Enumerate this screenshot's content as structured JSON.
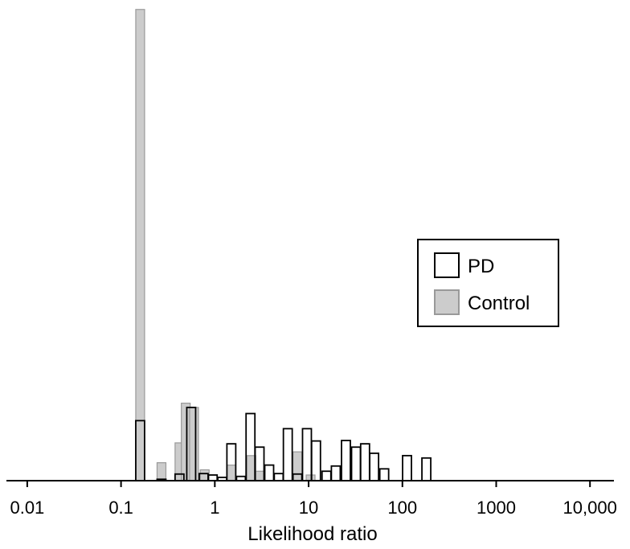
{
  "chart_data": {
    "type": "bar",
    "title": "",
    "xlabel": "Likelihood ratio",
    "ylabel": "",
    "x_scale": "log",
    "xlim": [
      0.006,
      18000
    ],
    "ylim": [
      0,
      1.0
    ],
    "grid": false,
    "legend_position": "right",
    "x_ticks": [
      {
        "value": 0.01,
        "label": "0.01"
      },
      {
        "value": 0.1,
        "label": "0.1"
      },
      {
        "value": 1,
        "label": "1"
      },
      {
        "value": 10,
        "label": "10"
      },
      {
        "value": 100,
        "label": "100"
      },
      {
        "value": 1000,
        "label": "1000"
      },
      {
        "value": 10000,
        "label": "10,000"
      }
    ],
    "series": [
      {
        "name": "PD",
        "fill": "#ffffff",
        "stroke": "#000000",
        "points": [
          {
            "x": 0.16,
            "y": 0.127
          },
          {
            "x": 0.27,
            "y": 0.003
          },
          {
            "x": 0.42,
            "y": 0.014
          },
          {
            "x": 0.56,
            "y": 0.155
          },
          {
            "x": 0.76,
            "y": 0.015
          },
          {
            "x": 0.95,
            "y": 0.012
          },
          {
            "x": 1.2,
            "y": 0.007
          },
          {
            "x": 1.5,
            "y": 0.078
          },
          {
            "x": 1.9,
            "y": 0.009
          },
          {
            "x": 2.4,
            "y": 0.142
          },
          {
            "x": 3.0,
            "y": 0.071
          },
          {
            "x": 3.8,
            "y": 0.033
          },
          {
            "x": 4.8,
            "y": 0.015
          },
          {
            "x": 6.0,
            "y": 0.11
          },
          {
            "x": 7.6,
            "y": 0.014
          },
          {
            "x": 9.6,
            "y": 0.11
          },
          {
            "x": 12,
            "y": 0.084
          },
          {
            "x": 15.5,
            "y": 0.02
          },
          {
            "x": 19.5,
            "y": 0.031
          },
          {
            "x": 25,
            "y": 0.085
          },
          {
            "x": 32,
            "y": 0.071
          },
          {
            "x": 40,
            "y": 0.078
          },
          {
            "x": 50,
            "y": 0.058
          },
          {
            "x": 64,
            "y": 0.025
          },
          {
            "x": 112,
            "y": 0.053
          },
          {
            "x": 180,
            "y": 0.048
          }
        ]
      },
      {
        "name": "Control",
        "fill": "#cccccc",
        "stroke": "#999999",
        "points": [
          {
            "x": 0.16,
            "y": 0.997
          },
          {
            "x": 0.27,
            "y": 0.038
          },
          {
            "x": 0.42,
            "y": 0.08
          },
          {
            "x": 0.49,
            "y": 0.164
          },
          {
            "x": 0.6,
            "y": 0.155
          },
          {
            "x": 0.78,
            "y": 0.023
          },
          {
            "x": 1.5,
            "y": 0.033
          },
          {
            "x": 2.45,
            "y": 0.053
          },
          {
            "x": 3.05,
            "y": 0.02
          },
          {
            "x": 7.6,
            "y": 0.061
          },
          {
            "x": 10.5,
            "y": 0.012
          }
        ]
      }
    ]
  }
}
